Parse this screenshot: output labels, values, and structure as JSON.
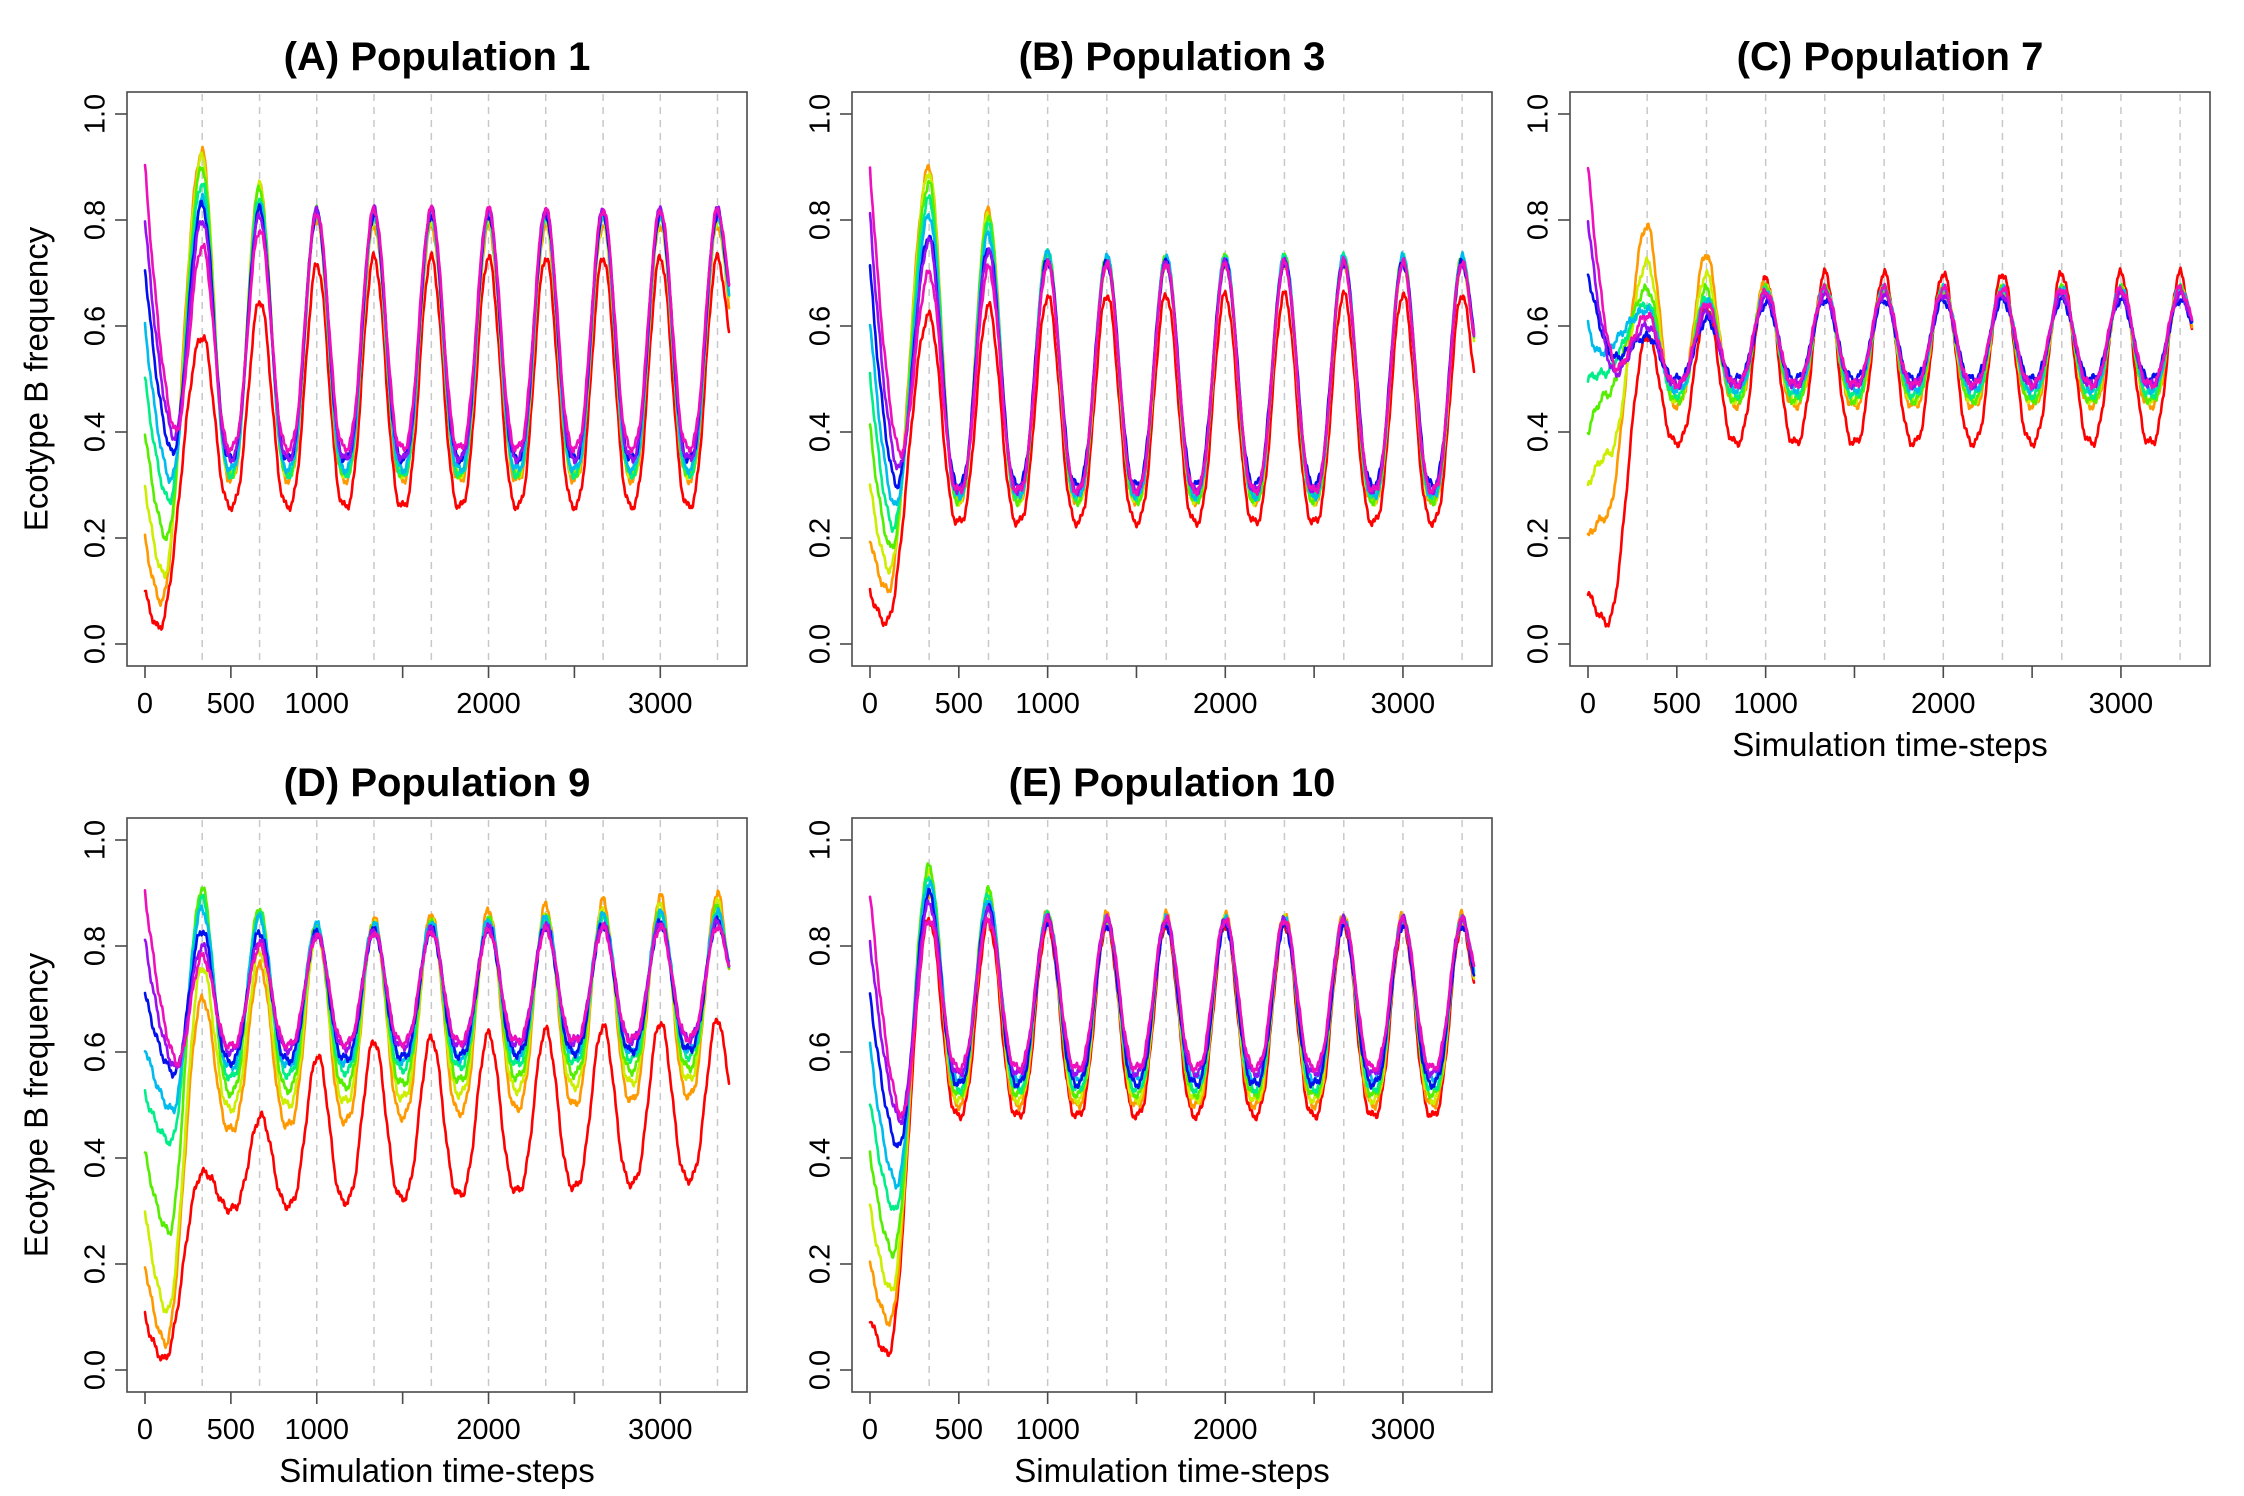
{
  "figure": {
    "colors": [
      "#ff0000",
      "#ff9900",
      "#ccee00",
      "#55ee00",
      "#00ee88",
      "#00bbee",
      "#0011ee",
      "#9911ee",
      "#ee11bb"
    ]
  },
  "chart_data": [
    {
      "type": "line",
      "title": "(A) Population 1",
      "xlabel": "",
      "ylabel": "Ecotype B frequency",
      "xlim": [
        0,
        3400
      ],
      "ylim": [
        0,
        1
      ],
      "xticks": [
        0,
        500,
        1000,
        1500,
        2000,
        2500,
        3000
      ],
      "xtick_labels": [
        "0",
        "500",
        "1000",
        "",
        "2000",
        "",
        "3000"
      ],
      "yticks": [
        0,
        0.2,
        0.4,
        0.6,
        0.8,
        1.0
      ],
      "ytick_labels": [
        "0.0",
        "0.2",
        "0.4",
        "0.6",
        "0.8",
        "1.0"
      ],
      "vlines": [
        333,
        667,
        1000,
        1333,
        1667,
        2000,
        2333,
        2667,
        3000,
        3333
      ],
      "grid": false,
      "series": [
        {
          "start": 0.1,
          "min1": 0.03,
          "tmin1": 80,
          "peak1": 0.58,
          "hi": 0.73,
          "lo": 0.26,
          "end": 0.73,
          "drift": 0.0,
          "phase": 0
        },
        {
          "start": 0.2,
          "min1": 0.08,
          "tmin1": 95,
          "peak1": 0.93,
          "hi": 0.79,
          "lo": 0.31,
          "end": 0.78,
          "drift": 0.0,
          "phase": 0
        },
        {
          "start": 0.3,
          "min1": 0.13,
          "tmin1": 110,
          "peak1": 0.92,
          "hi": 0.8,
          "lo": 0.32,
          "end": 0.79,
          "drift": 0.0,
          "phase": 0
        },
        {
          "start": 0.4,
          "min1": 0.2,
          "tmin1": 125,
          "peak1": 0.9,
          "hi": 0.81,
          "lo": 0.32,
          "end": 0.8,
          "drift": 0.0,
          "phase": 0
        },
        {
          "start": 0.5,
          "min1": 0.27,
          "tmin1": 140,
          "peak1": 0.87,
          "hi": 0.81,
          "lo": 0.32,
          "end": 0.81,
          "drift": 0.0,
          "phase": 0
        },
        {
          "start": 0.6,
          "min1": 0.31,
          "tmin1": 150,
          "peak1": 0.84,
          "hi": 0.81,
          "lo": 0.33,
          "end": 0.81,
          "drift": 0.0,
          "phase": 0
        },
        {
          "start": 0.71,
          "min1": 0.36,
          "tmin1": 160,
          "peak1": 0.83,
          "hi": 0.81,
          "lo": 0.35,
          "end": 0.82,
          "drift": 0.0,
          "phase": 0
        },
        {
          "start": 0.8,
          "min1": 0.39,
          "tmin1": 170,
          "peak1": 0.8,
          "hi": 0.82,
          "lo": 0.35,
          "end": 0.82,
          "drift": 0.0,
          "phase": 0
        },
        {
          "start": 0.9,
          "min1": 0.4,
          "tmin1": 180,
          "peak1": 0.75,
          "hi": 0.82,
          "lo": 0.37,
          "end": 0.81,
          "drift": 0.0,
          "phase": 0
        }
      ]
    },
    {
      "type": "line",
      "title": "(B) Population 3",
      "xlabel": "",
      "ylabel": "",
      "xlim": [
        0,
        3400
      ],
      "ylim": [
        0,
        1
      ],
      "xticks": [
        0,
        500,
        1000,
        1500,
        2000,
        2500,
        3000
      ],
      "xtick_labels": [
        "0",
        "500",
        "1000",
        "",
        "2000",
        "",
        "3000"
      ],
      "yticks": [
        0,
        0.2,
        0.4,
        0.6,
        0.8,
        1.0
      ],
      "ytick_labels": [
        "0.0",
        "0.2",
        "0.4",
        "0.6",
        "0.8",
        "1.0"
      ],
      "vlines": [
        333,
        667,
        1000,
        1333,
        1667,
        2000,
        2333,
        2667,
        3000,
        3333
      ],
      "grid": false,
      "series": [
        {
          "start": 0.1,
          "min1": 0.04,
          "tmin1": 90,
          "peak1": 0.62,
          "hi": 0.66,
          "lo": 0.23,
          "end": 0.62,
          "drift": 0.0,
          "phase": 0
        },
        {
          "start": 0.2,
          "min1": 0.1,
          "tmin1": 100,
          "peak1": 0.9,
          "hi": 0.72,
          "lo": 0.27,
          "end": 0.69,
          "drift": 0.0,
          "phase": 0
        },
        {
          "start": 0.3,
          "min1": 0.14,
          "tmin1": 110,
          "peak1": 0.89,
          "hi": 0.72,
          "lo": 0.27,
          "end": 0.69,
          "drift": 0.0,
          "phase": 0
        },
        {
          "start": 0.41,
          "min1": 0.18,
          "tmin1": 120,
          "peak1": 0.87,
          "hi": 0.73,
          "lo": 0.27,
          "end": 0.7,
          "drift": 0.0,
          "phase": 0
        },
        {
          "start": 0.51,
          "min1": 0.22,
          "tmin1": 130,
          "peak1": 0.84,
          "hi": 0.73,
          "lo": 0.28,
          "end": 0.7,
          "drift": 0.0,
          "phase": 0
        },
        {
          "start": 0.61,
          "min1": 0.26,
          "tmin1": 140,
          "peak1": 0.81,
          "hi": 0.73,
          "lo": 0.28,
          "end": 0.7,
          "drift": 0.0,
          "phase": 0
        },
        {
          "start": 0.71,
          "min1": 0.3,
          "tmin1": 150,
          "peak1": 0.77,
          "hi": 0.72,
          "lo": 0.3,
          "end": 0.71,
          "drift": 0.0,
          "phase": 0
        },
        {
          "start": 0.81,
          "min1": 0.33,
          "tmin1": 160,
          "peak1": 0.76,
          "hi": 0.72,
          "lo": 0.29,
          "end": 0.7,
          "drift": 0.0,
          "phase": 0
        },
        {
          "start": 0.9,
          "min1": 0.36,
          "tmin1": 170,
          "peak1": 0.7,
          "hi": 0.72,
          "lo": 0.29,
          "end": 0.7,
          "drift": 0.0,
          "phase": 0
        }
      ]
    },
    {
      "type": "line",
      "title": "(C) Population 7",
      "xlabel": "Simulation time-steps",
      "ylabel": "",
      "xlim": [
        0,
        3400
      ],
      "ylim": [
        0,
        1
      ],
      "xticks": [
        0,
        500,
        1000,
        1500,
        2000,
        2500,
        3000
      ],
      "xtick_labels": [
        "0",
        "500",
        "1000",
        "",
        "2000",
        "",
        "3000"
      ],
      "yticks": [
        0,
        0.2,
        0.4,
        0.6,
        0.8,
        1.0
      ],
      "ytick_labels": [
        "0.0",
        "0.2",
        "0.4",
        "0.6",
        "0.8",
        "1.0"
      ],
      "vlines": [
        333,
        667,
        1000,
        1333,
        1667,
        2000,
        2333,
        2667,
        3000,
        3333
      ],
      "grid": false,
      "series": [
        {
          "start": 0.1,
          "min1": 0.04,
          "tmin1": 110,
          "peak1": 0.58,
          "hi": 0.7,
          "lo": 0.38,
          "end": 0.66,
          "drift": 0.0,
          "phase": 0
        },
        {
          "start": 0.2,
          "min1": 0.24,
          "tmin1": 100,
          "peak1": 0.79,
          "hi": 0.67,
          "lo": 0.45,
          "end": 0.67,
          "drift": 0.0,
          "phase": 0
        },
        {
          "start": 0.3,
          "min1": 0.36,
          "tmin1": 120,
          "peak1": 0.72,
          "hi": 0.67,
          "lo": 0.46,
          "end": 0.68,
          "drift": 0.0,
          "phase": 0
        },
        {
          "start": 0.4,
          "min1": 0.47,
          "tmin1": 100,
          "peak1": 0.67,
          "hi": 0.67,
          "lo": 0.46,
          "end": 0.67,
          "drift": 0.0,
          "phase": 0
        },
        {
          "start": 0.5,
          "min1": 0.51,
          "tmin1": 80,
          "peak1": 0.64,
          "hi": 0.67,
          "lo": 0.47,
          "end": 0.67,
          "drift": 0.0,
          "phase": 0
        },
        {
          "start": 0.6,
          "min1": 0.55,
          "tmin1": 60,
          "peak1": 0.63,
          "hi": 0.67,
          "lo": 0.48,
          "end": 0.67,
          "drift": 0.0,
          "phase": 0
        },
        {
          "start": 0.7,
          "min1": 0.54,
          "tmin1": 150,
          "peak1": 0.58,
          "hi": 0.65,
          "lo": 0.5,
          "end": 0.66,
          "drift": 0.0,
          "phase": 0
        },
        {
          "start": 0.8,
          "min1": 0.51,
          "tmin1": 150,
          "peak1": 0.6,
          "hi": 0.66,
          "lo": 0.49,
          "end": 0.66,
          "drift": 0.0,
          "phase": 0
        },
        {
          "start": 0.9,
          "min1": 0.52,
          "tmin1": 160,
          "peak1": 0.62,
          "hi": 0.67,
          "lo": 0.49,
          "end": 0.66,
          "drift": 0.0,
          "phase": 0
        }
      ]
    },
    {
      "type": "line",
      "title": "(D) Population 9",
      "xlabel": "Simulation time-steps",
      "ylabel": "Ecotype B frequency",
      "xlim": [
        0,
        3400
      ],
      "ylim": [
        0,
        1
      ],
      "xticks": [
        0,
        500,
        1000,
        1500,
        2000,
        2500,
        3000
      ],
      "xtick_labels": [
        "0",
        "500",
        "1000",
        "",
        "2000",
        "",
        "3000"
      ],
      "yticks": [
        0,
        0.2,
        0.4,
        0.6,
        0.8,
        1.0
      ],
      "ytick_labels": [
        "0.0",
        "0.2",
        "0.4",
        "0.6",
        "0.8",
        "1.0"
      ],
      "vlines": [
        333,
        667,
        1000,
        1333,
        1667,
        2000,
        2333,
        2667,
        3000,
        3333
      ],
      "grid": false,
      "series": [
        {
          "start": 0.1,
          "min1": 0.02,
          "tmin1": 110,
          "peak1": 0.37,
          "hi": 0.6,
          "lo": 0.3,
          "end": 0.57,
          "drift": 0.07,
          "phase": 0
        },
        {
          "start": 0.2,
          "min1": 0.05,
          "tmin1": 120,
          "peak1": 0.7,
          "hi": 0.83,
          "lo": 0.45,
          "end": 0.79,
          "drift": 0.08,
          "phase": 0
        },
        {
          "start": 0.3,
          "min1": 0.11,
          "tmin1": 130,
          "peak1": 0.76,
          "hi": 0.82,
          "lo": 0.49,
          "end": 0.79,
          "drift": 0.07,
          "phase": 0
        },
        {
          "start": 0.41,
          "min1": 0.26,
          "tmin1": 140,
          "peak1": 0.91,
          "hi": 0.82,
          "lo": 0.52,
          "end": 0.8,
          "drift": 0.06,
          "phase": 0
        },
        {
          "start": 0.52,
          "min1": 0.43,
          "tmin1": 150,
          "peak1": 0.89,
          "hi": 0.82,
          "lo": 0.55,
          "end": 0.8,
          "drift": 0.05,
          "phase": 0
        },
        {
          "start": 0.61,
          "min1": 0.49,
          "tmin1": 160,
          "peak1": 0.87,
          "hi": 0.83,
          "lo": 0.57,
          "end": 0.8,
          "drift": 0.04,
          "phase": 0
        },
        {
          "start": 0.71,
          "min1": 0.56,
          "tmin1": 170,
          "peak1": 0.83,
          "hi": 0.82,
          "lo": 0.58,
          "end": 0.8,
          "drift": 0.03,
          "phase": 0
        },
        {
          "start": 0.81,
          "min1": 0.57,
          "tmin1": 180,
          "peak1": 0.8,
          "hi": 0.82,
          "lo": 0.6,
          "end": 0.8,
          "drift": 0.03,
          "phase": 0
        },
        {
          "start": 0.9,
          "min1": 0.58,
          "tmin1": 190,
          "peak1": 0.78,
          "hi": 0.82,
          "lo": 0.61,
          "end": 0.8,
          "drift": 0.02,
          "phase": 0
        }
      ]
    },
    {
      "type": "line",
      "title": "(E) Population 10",
      "xlabel": "Simulation time-steps",
      "ylabel": "",
      "xlim": [
        0,
        3400
      ],
      "ylim": [
        0,
        1
      ],
      "xticks": [
        0,
        500,
        1000,
        1500,
        2000,
        2500,
        3000
      ],
      "xtick_labels": [
        "0",
        "500",
        "1000",
        "",
        "2000",
        "",
        "3000"
      ],
      "yticks": [
        0,
        0.2,
        0.4,
        0.6,
        0.8,
        1.0
      ],
      "ytick_labels": [
        "0.0",
        "0.2",
        "0.4",
        "0.6",
        "0.8",
        "1.0"
      ],
      "vlines": [
        333,
        667,
        1000,
        1333,
        1667,
        2000,
        2333,
        2667,
        3000,
        3333
      ],
      "grid": false,
      "series": [
        {
          "start": 0.1,
          "min1": 0.03,
          "tmin1": 100,
          "peak1": 0.85,
          "hi": 0.84,
          "lo": 0.48,
          "end": 0.83,
          "drift": 0.0,
          "phase": 0
        },
        {
          "start": 0.2,
          "min1": 0.09,
          "tmin1": 110,
          "peak1": 0.9,
          "hi": 0.86,
          "lo": 0.5,
          "end": 0.84,
          "drift": 0.0,
          "phase": 0
        },
        {
          "start": 0.31,
          "min1": 0.15,
          "tmin1": 120,
          "peak1": 0.94,
          "hi": 0.85,
          "lo": 0.51,
          "end": 0.84,
          "drift": 0.0,
          "phase": 0
        },
        {
          "start": 0.41,
          "min1": 0.22,
          "tmin1": 130,
          "peak1": 0.95,
          "hi": 0.85,
          "lo": 0.52,
          "end": 0.84,
          "drift": 0.0,
          "phase": 0
        },
        {
          "start": 0.51,
          "min1": 0.3,
          "tmin1": 140,
          "peak1": 0.93,
          "hi": 0.85,
          "lo": 0.53,
          "end": 0.84,
          "drift": 0.0,
          "phase": 0
        },
        {
          "start": 0.61,
          "min1": 0.35,
          "tmin1": 150,
          "peak1": 0.92,
          "hi": 0.85,
          "lo": 0.55,
          "end": 0.84,
          "drift": 0.0,
          "phase": 0
        },
        {
          "start": 0.71,
          "min1": 0.42,
          "tmin1": 160,
          "peak1": 0.9,
          "hi": 0.84,
          "lo": 0.54,
          "end": 0.84,
          "drift": 0.0,
          "phase": 0
        },
        {
          "start": 0.81,
          "min1": 0.47,
          "tmin1": 170,
          "peak1": 0.88,
          "hi": 0.85,
          "lo": 0.56,
          "end": 0.84,
          "drift": 0.0,
          "phase": 0
        },
        {
          "start": 0.9,
          "min1": 0.48,
          "tmin1": 180,
          "peak1": 0.85,
          "hi": 0.85,
          "lo": 0.57,
          "end": 0.84,
          "drift": 0.0,
          "phase": 0
        }
      ]
    }
  ]
}
